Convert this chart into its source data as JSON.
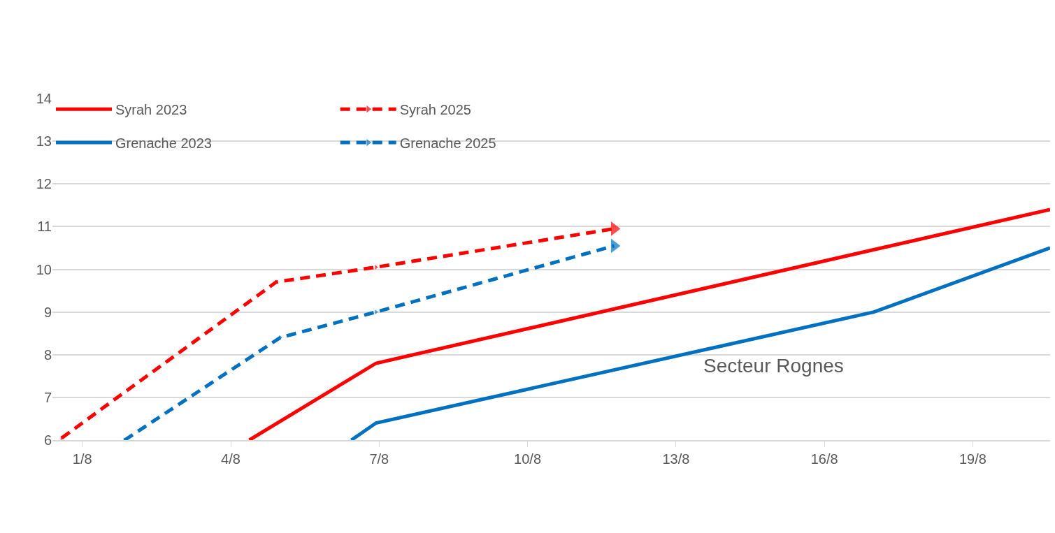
{
  "chart_data": {
    "type": "line",
    "series": [
      {
        "name": "Syrah 2023",
        "color": "#ff0000",
        "line_style": "solid",
        "x": [
          "--08-04T09:00",
          "--08-06T22:30",
          "--08-20T13:30"
        ],
        "values": [
          6,
          7.8,
          11.4
        ]
      },
      {
        "name": "Grenache 2023",
        "color": "#0070c0",
        "line_style": "solid",
        "x": [
          "--08-06T10:30",
          "--08-06T22:30",
          "--08-17",
          "--08-20T13:30"
        ],
        "values": [
          6,
          6.4,
          9.0,
          10.5
        ]
      },
      {
        "name": "Syrah 2025",
        "color": "#ff0000",
        "line_style": "dashed",
        "marker": "triangle",
        "x": [
          "--07-31T14:00",
          "--08-04T22:00",
          "--08-06T22:30",
          "--08-11T18:00"
        ],
        "values": [
          6.05,
          9.7,
          10.05,
          10.95
        ]
      },
      {
        "name": "Grenache 2025",
        "color": "#0070c0",
        "line_style": "dashed",
        "marker": "triangle",
        "x": [
          "--08-01T20:30",
          "--08-05",
          "--08-06T22:30",
          "--08-11T18:00"
        ],
        "values": [
          6,
          8.4,
          9.0,
          10.55
        ]
      }
    ],
    "xlim": [
      "--07-31T09:30",
      "--08-20T13:30"
    ],
    "xticks": [
      {
        "value": "--08-01",
        "label": "1/8"
      },
      {
        "value": "--08-04",
        "label": "4/8"
      },
      {
        "value": "--08-07",
        "label": "7/8"
      },
      {
        "value": "--08-10",
        "label": "10/8"
      },
      {
        "value": "--08-13",
        "label": "13/8"
      },
      {
        "value": "--08-16",
        "label": "16/8"
      },
      {
        "value": "--08-19",
        "label": "19/8"
      }
    ],
    "ylim": [
      6,
      14
    ],
    "yticks": [
      6,
      7,
      8,
      9,
      10,
      11,
      12,
      13,
      14
    ],
    "grid": "y",
    "legend": "top left",
    "annotations": [
      "Secteur Rognes"
    ]
  }
}
